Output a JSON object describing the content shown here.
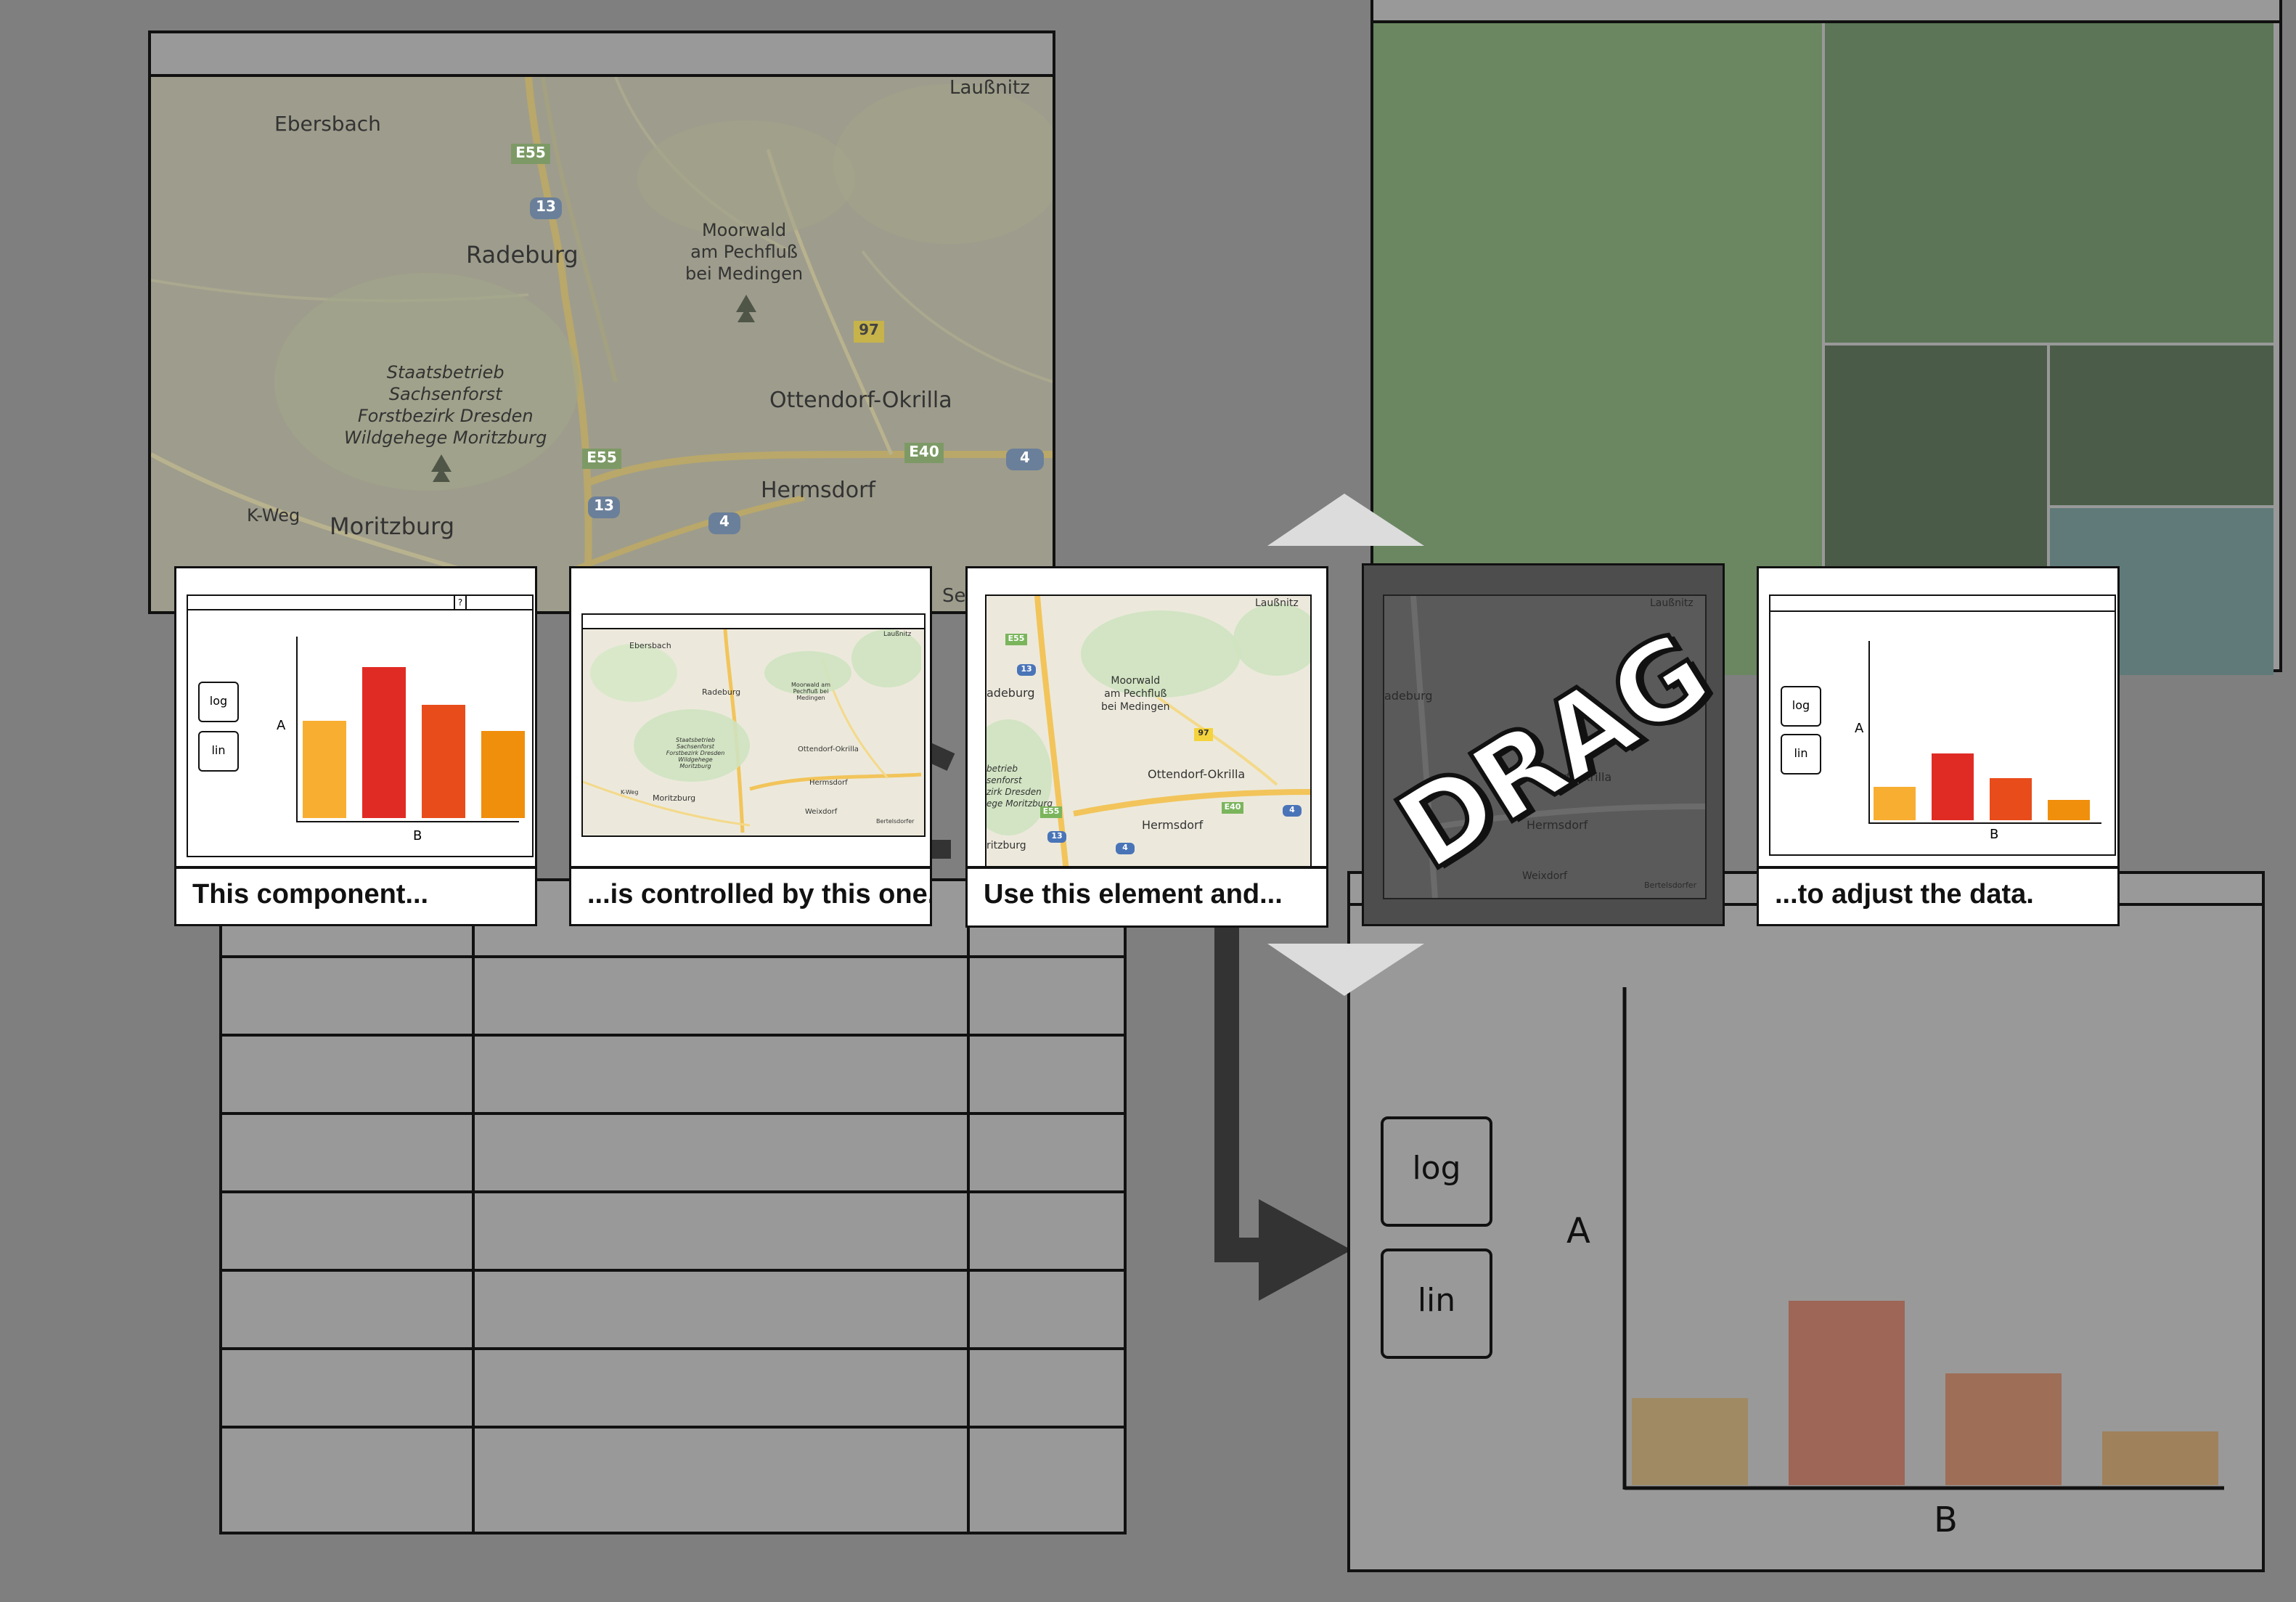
{
  "map_large": {
    "labels": {
      "ebersbach": "Ebersbach",
      "laussnitz": "Laußnitz",
      "radeburg": "Radeburg",
      "moorwald1": "Moorwald",
      "moorwald2": "am Pechfluß",
      "moorwald3": "bei Medingen",
      "staats1": "Staatsbetrieb",
      "staats2": "Sachsenforst",
      "staats3": "Forstbezirk Dresden",
      "staats4": "Wildgehege Moritzburg",
      "ottendorf": "Ottendorf-Okrilla",
      "hermsdorf": "Hermsdorf",
      "moritzburg": "Moritzburg",
      "kweg": "K-Weg",
      "se": "Se"
    },
    "shields": {
      "e55a": "E55",
      "r13a": "13",
      "r97": "97",
      "e55b": "E55",
      "r13b": "13",
      "r4a": "4",
      "e40": "E40",
      "r4b": "4"
    }
  },
  "cards": {
    "c1": {
      "caption": "This component...",
      "btn_log": "log",
      "btn_lin": "lin",
      "axis_y": "A",
      "axis_x": "B",
      "help": "?"
    },
    "c2": {
      "caption": "...is controlled by this one.",
      "labels": {
        "laussnitz": "Laußnitz",
        "ebersbach": "Ebersbach",
        "radeburg": "Radeburg",
        "moorwald": "Moorwald am Pechfluß bei Medingen",
        "staats": "Staatsbetrieb Sachsenforst Forstbezirk Dresden Wildgehege Moritzburg",
        "ottendorf": "Ottendorf-Okrilla",
        "hermsdorf": "Hermsdorf",
        "moritzburg": "Moritzburg",
        "weixdorf": "Weixdorf",
        "kweg": "K-Weg",
        "bottom": "Bertelsdorfer"
      }
    },
    "c3": {
      "caption": "Use this element and...",
      "labels": {
        "laussnitz": "Laußnitz",
        "radeburg": "adeburg",
        "moorwald1": "Moorwald",
        "moorwald2": "am Pechfluß",
        "moorwald3": "bei Medingen",
        "staats": "betrieb",
        "sachsen": "senforst",
        "zirk": "zirk Dresden",
        "ege": "ege Moritzburg",
        "ritzburg": "ritzburg",
        "ottendorf": "Ottendorf-Okrilla",
        "hermsdorf": "Hermsdorf"
      },
      "shields": {
        "e55": "E55",
        "r13": "13",
        "r97": "97",
        "e40": "E40",
        "r4a": "4",
        "e55b": "E55",
        "r13b": "13",
        "r4b": "4"
      }
    },
    "c4": {
      "drag_word": "DRAG",
      "labels": {
        "laussnitz": "Laußnitz",
        "radeburg": "adeburg",
        "dorf": "ndorf-Okrilla",
        "hermsdorf": "Hermsdorf",
        "weixdorf": "Weixdorf",
        "bottom": "Bertelsdorfer"
      }
    },
    "c5": {
      "caption": "...to adjust the data.",
      "btn_log": "log",
      "btn_lin": "lin",
      "axis_y": "A",
      "axis_x": "B"
    }
  },
  "chart_panel": {
    "btn_log": "log",
    "btn_lin": "lin"
  },
  "chart_data": {
    "type": "bar",
    "xlabel": "B",
    "ylabel": "A"
  },
  "colors": {
    "treemap": [
      "#6b8761",
      "#5b7556",
      "#4a5b48",
      "#4b5d48",
      "#607a7a"
    ],
    "bars_faded": [
      "#a08a64",
      "#9d6656",
      "#9e6e57",
      "#9f815b"
    ],
    "bars_bright": [
      "#f8ae31",
      "#e02b25",
      "#e84c1b",
      "#f08f0c"
    ],
    "background": "#7f7f7f",
    "panel": "#999999",
    "arrow": "#333333"
  }
}
